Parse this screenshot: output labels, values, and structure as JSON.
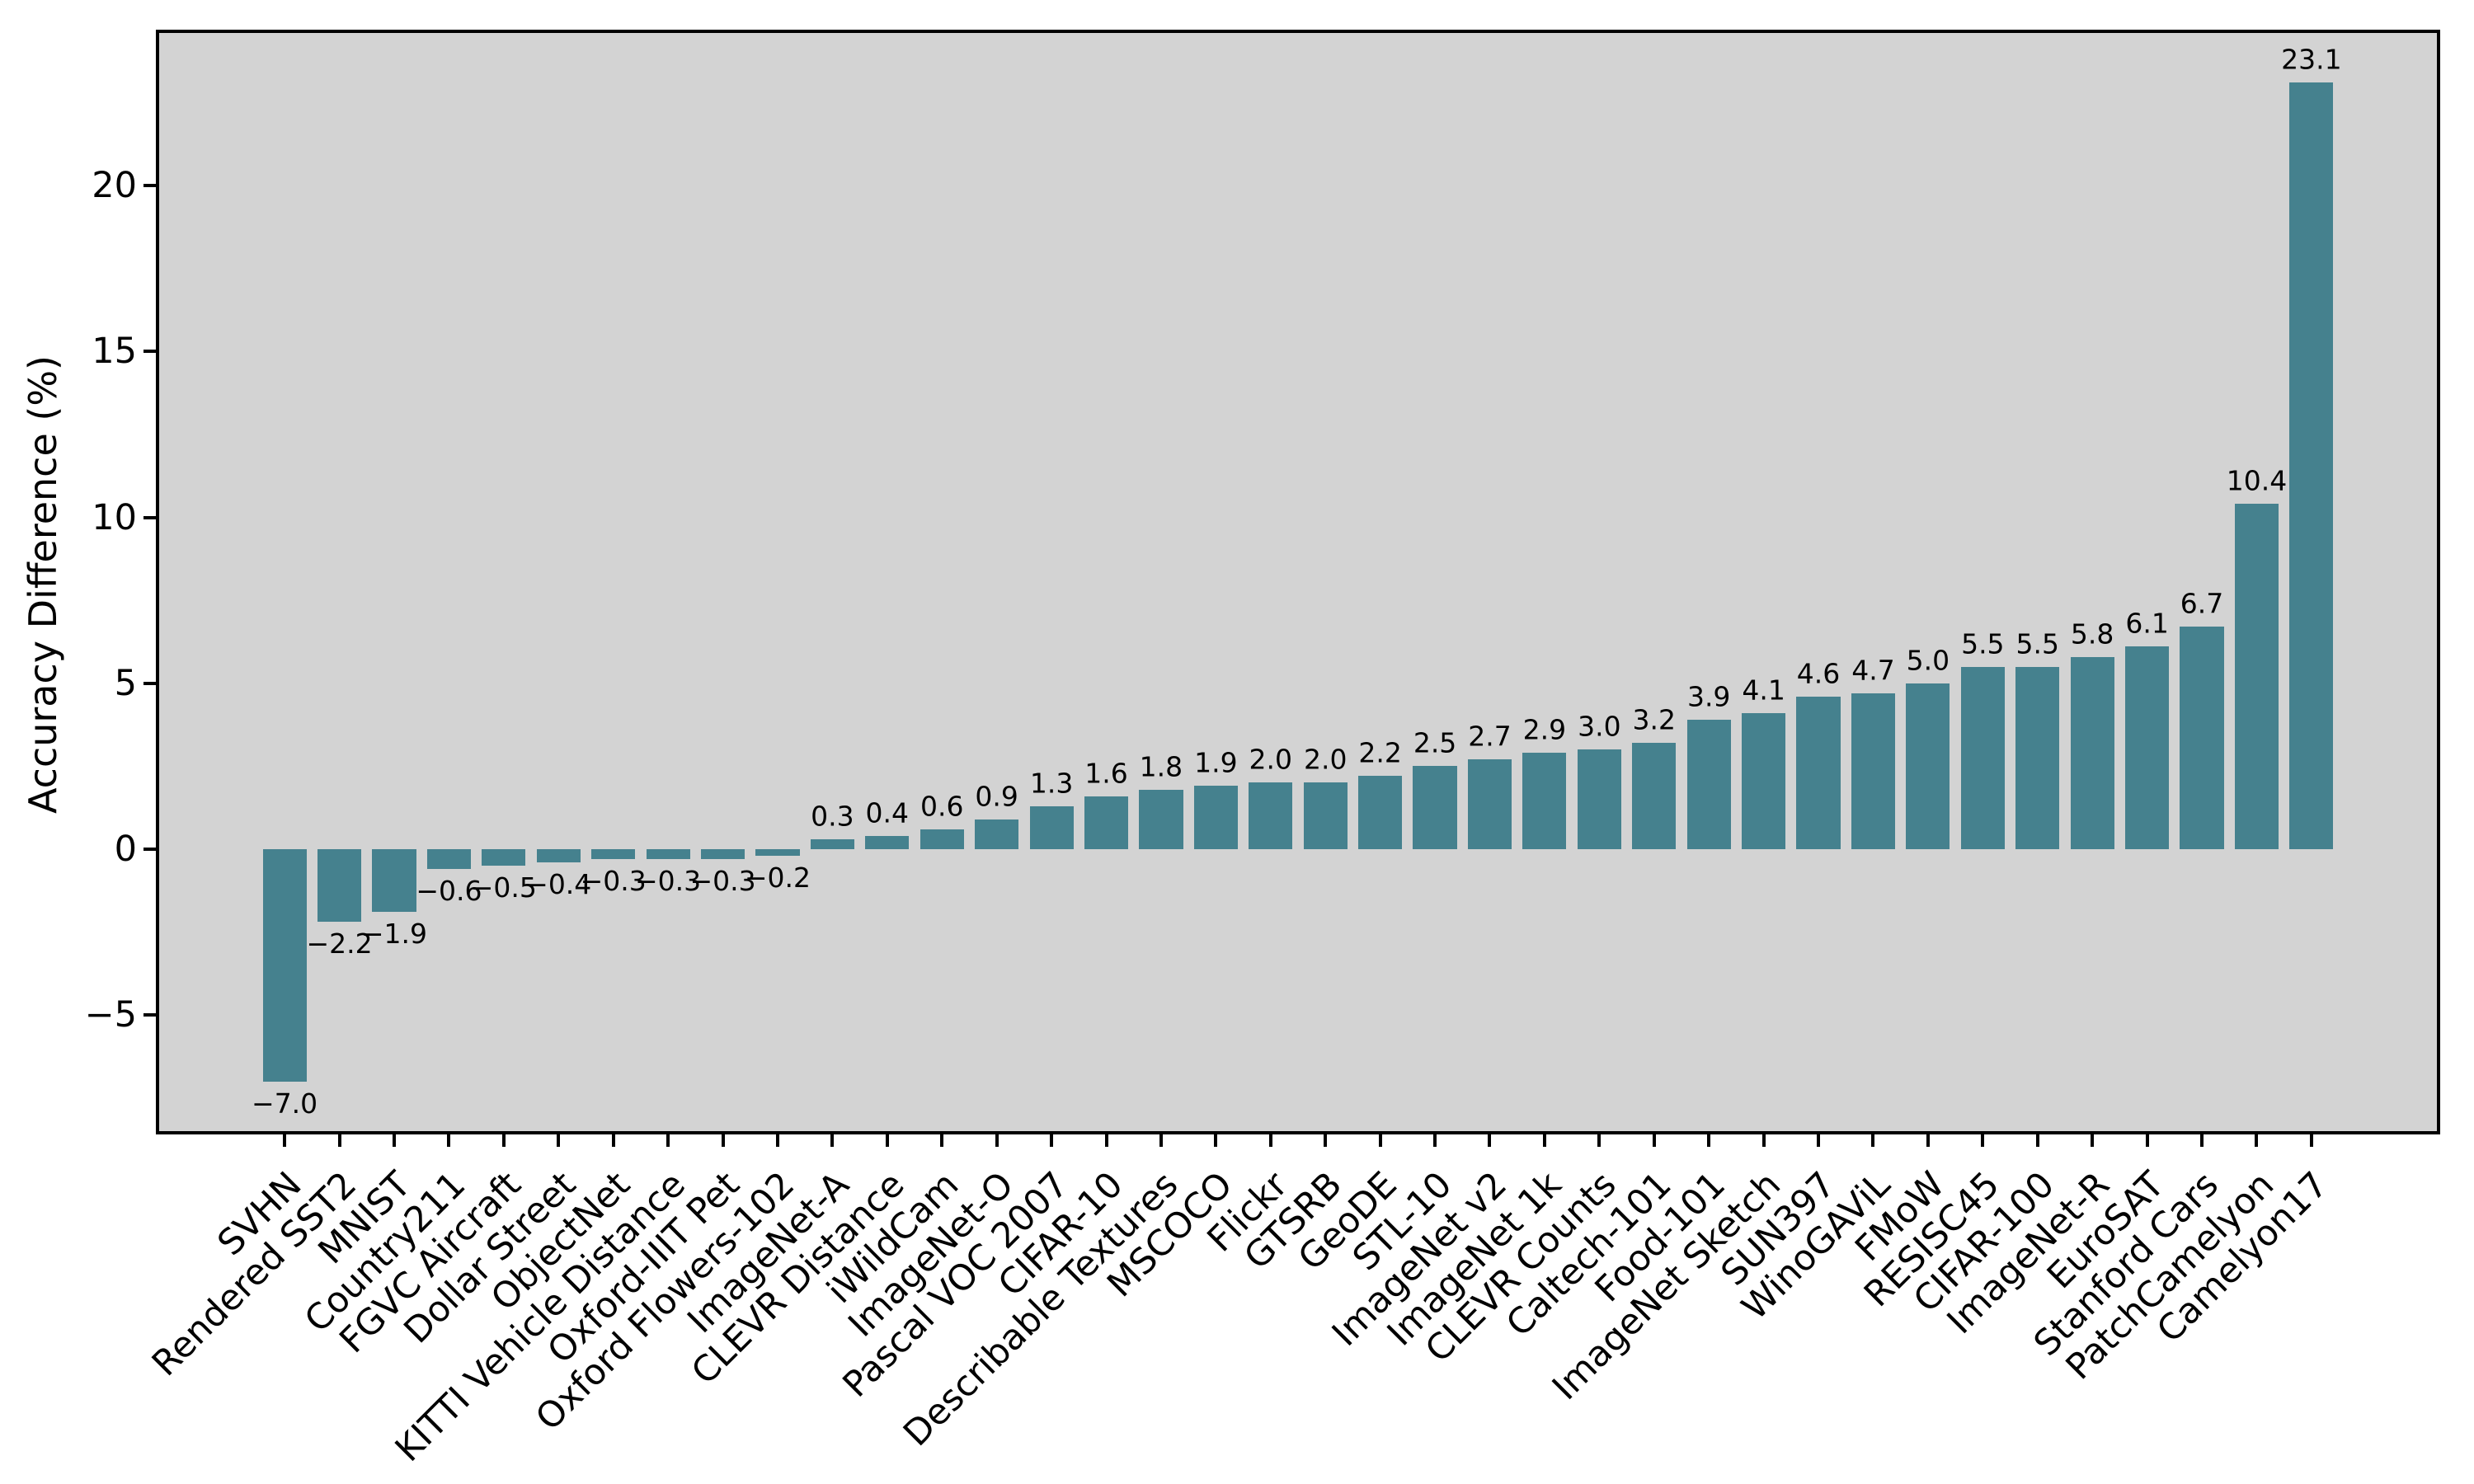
{
  "chart_data": {
    "type": "bar",
    "title": "",
    "xlabel": "",
    "ylabel": "Accuracy Difference (%)",
    "categories": [
      "SVHN",
      "Rendered SST2",
      "MNIST",
      "Country211",
      "FGVC Aircraft",
      "Dollar Street",
      "ObjectNet",
      "KITTI Vehicle Distance",
      "Oxford-IIIT Pet",
      "Oxford Flowers-102",
      "ImageNet-A",
      "CLEVR Distance",
      "iWildCam",
      "ImageNet-O",
      "Pascal VOC 2007",
      "CIFAR-10",
      "Describable Textures",
      "MSCOCO",
      "Flickr",
      "GTSRB",
      "GeoDE",
      "STL-10",
      "ImageNet v2",
      "ImageNet 1k",
      "CLEVR Counts",
      "Caltech-101",
      "Food-101",
      "ImageNet Sketch",
      "SUN397",
      "WinoGAViL",
      "FMoW",
      "RESISC45",
      "CIFAR-100",
      "ImageNet-R",
      "EuroSAT",
      "Stanford Cars",
      "PatchCamelyon",
      "Camelyon17"
    ],
    "values": [
      -7.0,
      -2.2,
      -1.9,
      -0.6,
      -0.5,
      -0.4,
      -0.3,
      -0.3,
      -0.3,
      -0.2,
      0.3,
      0.4,
      0.6,
      0.9,
      1.3,
      1.6,
      1.8,
      1.9,
      2.0,
      2.0,
      2.2,
      2.5,
      2.7,
      2.9,
      3.0,
      3.2,
      3.9,
      4.1,
      4.6,
      4.7,
      5.0,
      5.5,
      5.5,
      5.8,
      6.1,
      6.7,
      10.4,
      23.1
    ],
    "value_labels": [
      "−7.0",
      "−2.2",
      "−1.9",
      "−0.6",
      "−0.5",
      "−0.4",
      "−0.3",
      "−0.3",
      "−0.3",
      "−0.2",
      "0.3",
      "0.4",
      "0.6",
      "0.9",
      "1.3",
      "1.6",
      "1.8",
      "1.9",
      "2.0",
      "2.0",
      "2.2",
      "2.5",
      "2.7",
      "2.9",
      "3.0",
      "3.2",
      "3.9",
      "4.1",
      "4.6",
      "4.7",
      "5.0",
      "5.5",
      "5.5",
      "5.8",
      "6.1",
      "6.7",
      "10.4",
      "23.1"
    ],
    "yticks": [
      -5,
      0,
      5,
      10,
      15,
      20
    ],
    "ytick_labels": [
      "−5",
      "0",
      "5",
      "10",
      "15",
      "20"
    ],
    "ylim": [
      -8.5,
      24.6
    ],
    "xlim_index_units": [
      -2.29,
      39.29
    ],
    "bar_width_units": 0.8,
    "grid": false,
    "legend": null,
    "bar_color": "#45818e",
    "plot_background": "#d3d3d3",
    "figure_background": "#ffffff",
    "spine_color": "#000000",
    "x_tick_rotation_deg": 45
  }
}
